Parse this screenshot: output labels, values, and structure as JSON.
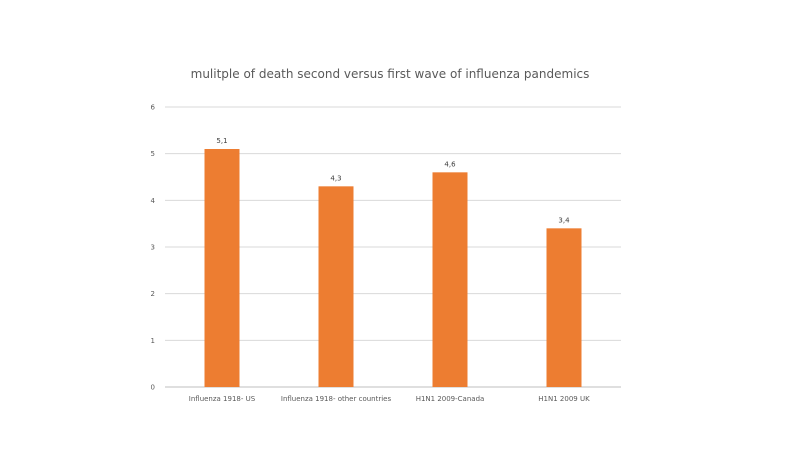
{
  "chart_data": {
    "type": "bar",
    "title": "mulitple of death second versus first wave of influenza pandemics",
    "categories": [
      "Influenza 1918- US",
      "Influenza 1918- other countries",
      "H1N1 2009-Canada",
      "H1N1 2009 UK"
    ],
    "values": [
      5.1,
      4.3,
      4.6,
      3.4
    ],
    "data_labels": [
      "5,1",
      "4,3",
      "4,6",
      "3,4"
    ],
    "yticks": [
      "0",
      "1",
      "2",
      "3",
      "4",
      "5",
      "6"
    ],
    "ylim": [
      0,
      6
    ],
    "grid": true,
    "bar_color": "#ed7d31"
  }
}
